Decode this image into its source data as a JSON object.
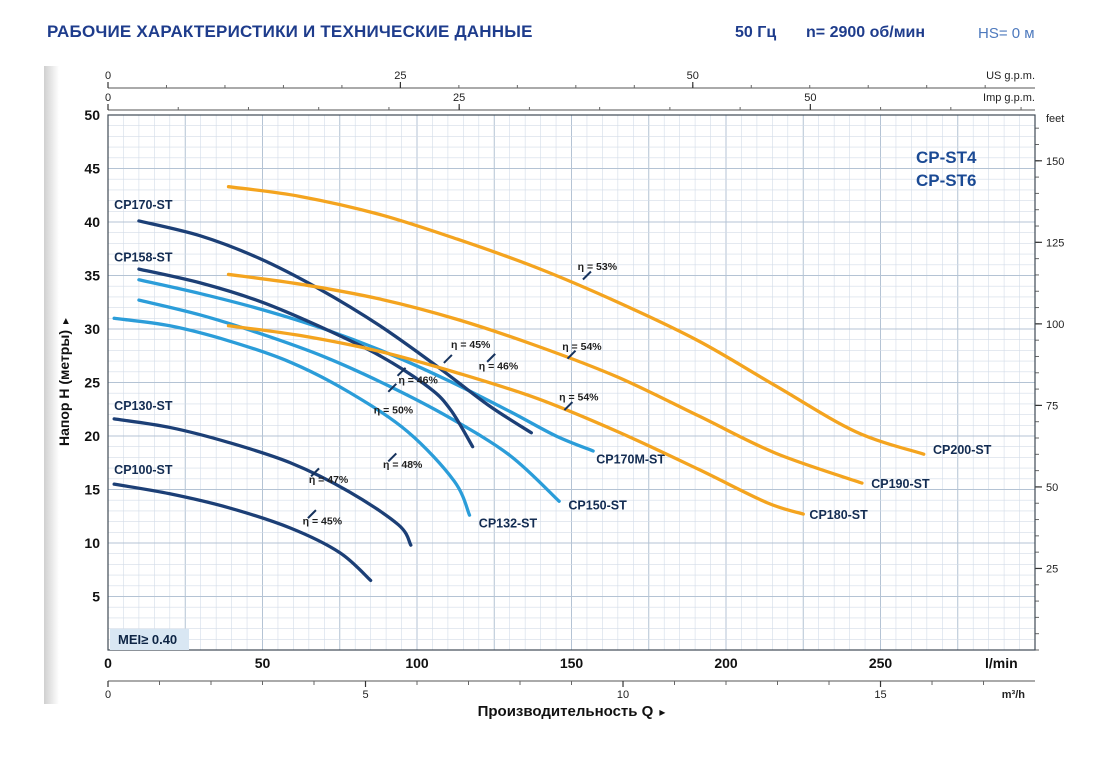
{
  "header": {
    "title": "РАБОЧИЕ ХАРАКТЕРИСТИКИ И ТЕХНИЧЕСКИЕ ДАННЫЕ",
    "frequency": "50 Гц",
    "speed": "n= 2900 об/мин",
    "suction": "HS= 0 м"
  },
  "family": {
    "line1": "CP-ST4",
    "line2": "CP-ST6"
  },
  "mei_badge": "MEI≥ 0.40",
  "icons": {
    "arrow": "▸"
  },
  "chart_data": {
    "type": "line",
    "xlabel": "Производительность Q",
    "ylabel": "Напор H (метры)",
    "x_unit_primary": "l/min",
    "xlim": [
      0,
      300
    ],
    "ylim": [
      0,
      50
    ],
    "x_ticks": [
      0,
      50,
      100,
      150,
      200,
      250
    ],
    "y_ticks": [
      5,
      10,
      15,
      20,
      25,
      30,
      35,
      40,
      45,
      50
    ],
    "grid": {
      "x_minor": 5,
      "x_major": 25,
      "y_minor": 1,
      "y_major": 5
    },
    "top_axes": [
      {
        "unit": "US g.p.m.",
        "ticks": [
          0,
          25,
          50
        ],
        "lpm_per_unit": 3.785,
        "minor_step": 5
      },
      {
        "unit": "Imp g.p.m.",
        "ticks": [
          0,
          25,
          50
        ],
        "lpm_per_unit": 4.546,
        "minor_step": 5
      }
    ],
    "bottom_axis": {
      "unit": "m³/h",
      "ticks": [
        0,
        5,
        10,
        15
      ],
      "lpm_per_unit": 16.667,
      "minor_step": 1
    },
    "right_axis": {
      "unit": "feet",
      "ticks": [
        25,
        50,
        75,
        100,
        125,
        150
      ],
      "m_per_unit": 0.3048,
      "minor_step": 5
    },
    "series": [
      {
        "name": "CP132-ST",
        "color": "#2b9dd9",
        "points": [
          [
            2,
            31.0
          ],
          [
            20,
            30.3
          ],
          [
            39,
            28.9
          ],
          [
            59,
            26.9
          ],
          [
            78,
            24.1
          ],
          [
            97,
            20.4
          ],
          [
            112,
            15.8
          ],
          [
            117,
            12.6
          ]
        ],
        "label": {
          "q": 120,
          "h": 11.8,
          "anchor": "start"
        }
      },
      {
        "name": "CP150-ST",
        "color": "#2b9dd9",
        "points": [
          [
            10,
            32.7
          ],
          [
            30,
            31.3
          ],
          [
            50,
            29.5
          ],
          [
            70,
            27.4
          ],
          [
            90,
            24.8
          ],
          [
            110,
            21.8
          ],
          [
            130,
            18.2
          ],
          [
            146,
            13.9
          ]
        ],
        "label": {
          "q": 149,
          "h": 13.5,
          "anchor": "start"
        }
      },
      {
        "name": "CP170M-ST",
        "color": "#2b9dd9",
        "points": [
          [
            10,
            34.6
          ],
          [
            30,
            33.3
          ],
          [
            50,
            31.8
          ],
          [
            70,
            30.0
          ],
          [
            90,
            27.8
          ],
          [
            110,
            25.2
          ],
          [
            130,
            22.3
          ],
          [
            145,
            20.0
          ],
          [
            157,
            18.6
          ]
        ],
        "label": {
          "q": 158,
          "h": 17.8,
          "anchor": "start"
        }
      },
      {
        "name": "CP100-ST",
        "color": "#1c3f76",
        "points": [
          [
            2,
            15.5
          ],
          [
            20,
            14.6
          ],
          [
            39,
            13.3
          ],
          [
            59,
            11.4
          ],
          [
            75,
            9.1
          ],
          [
            85,
            6.5
          ]
        ],
        "label": {
          "q": 2,
          "h": 16.8,
          "anchor": "start"
        }
      },
      {
        "name": "CP130-ST",
        "color": "#1c3f76",
        "points": [
          [
            2,
            21.6
          ],
          [
            20,
            20.8
          ],
          [
            39,
            19.4
          ],
          [
            59,
            17.5
          ],
          [
            78,
            14.8
          ],
          [
            94,
            11.7
          ],
          [
            98,
            9.8
          ]
        ],
        "label": {
          "q": 2,
          "h": 22.8,
          "anchor": "start"
        }
      },
      {
        "name": "CP158-ST",
        "color": "#1c3f76",
        "points": [
          [
            10,
            35.6
          ],
          [
            30,
            34.3
          ],
          [
            49,
            32.6
          ],
          [
            68,
            30.3
          ],
          [
            88,
            27.5
          ],
          [
            104,
            24.5
          ],
          [
            111,
            22.4
          ],
          [
            118,
            19.0
          ]
        ],
        "label": {
          "q": 2,
          "h": 36.7,
          "anchor": "start"
        }
      },
      {
        "name": "CP170-ST",
        "color": "#1c3f76",
        "points": [
          [
            10,
            40.1
          ],
          [
            30,
            38.7
          ],
          [
            49,
            36.6
          ],
          [
            68,
            33.8
          ],
          [
            88,
            30.3
          ],
          [
            107,
            26.4
          ],
          [
            123,
            22.9
          ],
          [
            137,
            20.3
          ]
        ],
        "label": {
          "q": 2,
          "h": 41.6,
          "anchor": "start"
        }
      },
      {
        "name": "CP180-ST",
        "color": "#f4a41f",
        "points": [
          [
            39,
            30.3
          ],
          [
            62,
            29.4
          ],
          [
            88,
            27.9
          ],
          [
            113,
            25.9
          ],
          [
            139,
            23.5
          ],
          [
            165,
            20.4
          ],
          [
            191,
            16.9
          ],
          [
            213,
            13.8
          ],
          [
            225,
            12.7
          ]
        ],
        "label": {
          "q": 227,
          "h": 12.6,
          "anchor": "start"
        }
      },
      {
        "name": "CP190-ST",
        "color": "#f4a41f",
        "points": [
          [
            39,
            35.1
          ],
          [
            62,
            34.2
          ],
          [
            88,
            32.8
          ],
          [
            113,
            30.9
          ],
          [
            139,
            28.4
          ],
          [
            165,
            25.5
          ],
          [
            191,
            21.9
          ],
          [
            216,
            18.4
          ],
          [
            244,
            15.6
          ]
        ],
        "label": {
          "q": 247,
          "h": 15.5,
          "anchor": "start"
        }
      },
      {
        "name": "CP200-ST",
        "color": "#f4a41f",
        "points": [
          [
            39,
            43.3
          ],
          [
            62,
            42.4
          ],
          [
            88,
            40.7
          ],
          [
            113,
            38.4
          ],
          [
            139,
            35.7
          ],
          [
            165,
            32.5
          ],
          [
            191,
            28.9
          ],
          [
            216,
            24.7
          ],
          [
            242,
            20.4
          ],
          [
            264,
            18.3
          ]
        ],
        "label": {
          "q": 267,
          "h": 18.7,
          "anchor": "start"
        }
      }
    ],
    "annotations": [
      {
        "text": "η = 45%",
        "q": 111,
        "h": 28.5,
        "mq": 110,
        "mh": 27.2
      },
      {
        "text": "η = 46%",
        "q": 120,
        "h": 26.5,
        "mq": 124,
        "mh": 27.3
      },
      {
        "text": "η = 46%",
        "q": 94,
        "h": 25.2,
        "mq": 95,
        "mh": 26.0
      },
      {
        "text": "η = 50%",
        "q": 86,
        "h": 22.4,
        "mq": 92,
        "mh": 24.5
      },
      {
        "text": "η = 53%",
        "q": 152,
        "h": 35.8,
        "mq": 155,
        "mh": 35.0
      },
      {
        "text": "η = 54%",
        "q": 147,
        "h": 28.3,
        "mq": 150,
        "mh": 27.6
      },
      {
        "text": "η = 54%",
        "q": 146,
        "h": 23.6,
        "mq": 149,
        "mh": 22.8
      },
      {
        "text": "η = 48%",
        "q": 89,
        "h": 17.3,
        "mq": 92,
        "mh": 18.0
      },
      {
        "text": "η = 47%",
        "q": 65,
        "h": 15.9,
        "mq": 67,
        "mh": 16.6
      },
      {
        "text": "η = 45%",
        "q": 63,
        "h": 12.0,
        "mq": 66,
        "mh": 12.7
      }
    ]
  }
}
